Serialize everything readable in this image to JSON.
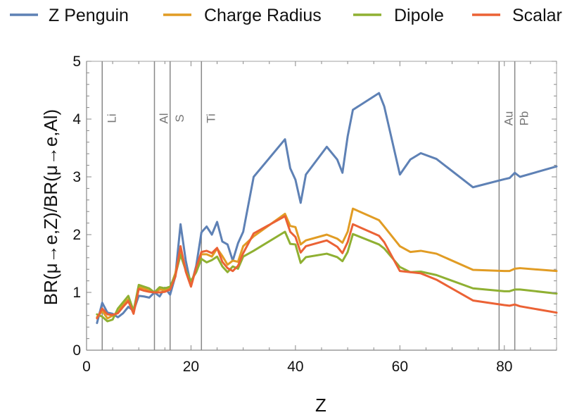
{
  "chart_data": {
    "type": "line",
    "xlabel": "Z",
    "ylabel": "BR(μ→e,Z)/BR(μ→e,Al)",
    "xlim": [
      0,
      90
    ],
    "ylim": [
      0,
      5
    ],
    "xticks": [
      0,
      20,
      40,
      60,
      80
    ],
    "yticks": [
      0,
      1,
      2,
      3,
      4,
      5
    ],
    "grid": false,
    "legend_position": "top",
    "reference_lines": [
      {
        "label": "Li",
        "x": 3
      },
      {
        "label": "Al",
        "x": 13
      },
      {
        "label": "S",
        "x": 16
      },
      {
        "label": "Ti",
        "x": 22
      },
      {
        "label": "Au",
        "x": 79
      },
      {
        "label": "Pb",
        "x": 82
      }
    ],
    "series": [
      {
        "name": "Z Penguin",
        "color": "#5e81b5",
        "points": [
          [
            2,
            0.47
          ],
          [
            3,
            0.82
          ],
          [
            4,
            0.65
          ],
          [
            5,
            0.63
          ],
          [
            6,
            0.57
          ],
          [
            7,
            0.64
          ],
          [
            8,
            0.75
          ],
          [
            9,
            0.68
          ],
          [
            10,
            0.94
          ],
          [
            11,
            0.93
          ],
          [
            12,
            0.91
          ],
          [
            13,
            1.0
          ],
          [
            14,
            0.93
          ],
          [
            15,
            1.08
          ],
          [
            16,
            0.96
          ],
          [
            17,
            1.28
          ],
          [
            18,
            2.18
          ],
          [
            19,
            1.55
          ],
          [
            20,
            1.12
          ],
          [
            21,
            1.46
          ],
          [
            22,
            2.04
          ],
          [
            23,
            2.14
          ],
          [
            24,
            2.0
          ],
          [
            25,
            2.22
          ],
          [
            26,
            1.88
          ],
          [
            27,
            1.83
          ],
          [
            28,
            1.55
          ],
          [
            29,
            1.85
          ],
          [
            30,
            2.05
          ],
          [
            32,
            3.0
          ],
          [
            38,
            3.65
          ],
          [
            39,
            3.15
          ],
          [
            40,
            2.95
          ],
          [
            41,
            2.55
          ],
          [
            42,
            3.04
          ],
          [
            46,
            3.52
          ],
          [
            48,
            3.3
          ],
          [
            49,
            3.07
          ],
          [
            50,
            3.7
          ],
          [
            51,
            4.16
          ],
          [
            56,
            4.45
          ],
          [
            57,
            4.22
          ],
          [
            60,
            3.04
          ],
          [
            62,
            3.3
          ],
          [
            64,
            3.41
          ],
          [
            67,
            3.31
          ],
          [
            74,
            2.82
          ],
          [
            80,
            2.96
          ],
          [
            81,
            2.98
          ],
          [
            82,
            3.07
          ],
          [
            83,
            3.0
          ],
          [
            90,
            3.18
          ]
        ]
      },
      {
        "name": "Charge Radius",
        "color": "#e19c24",
        "points": [
          [
            2,
            0.57
          ],
          [
            3,
            0.68
          ],
          [
            4,
            0.55
          ],
          [
            5,
            0.6
          ],
          [
            6,
            0.65
          ],
          [
            7,
            0.79
          ],
          [
            8,
            0.88
          ],
          [
            9,
            0.65
          ],
          [
            10,
            1.09
          ],
          [
            11,
            1.07
          ],
          [
            12,
            1.03
          ],
          [
            13,
            1.0
          ],
          [
            14,
            1.05
          ],
          [
            15,
            1.04
          ],
          [
            16,
            1.08
          ],
          [
            17,
            1.33
          ],
          [
            18,
            1.75
          ],
          [
            19,
            1.38
          ],
          [
            20,
            1.15
          ],
          [
            21,
            1.42
          ],
          [
            22,
            1.66
          ],
          [
            23,
            1.66
          ],
          [
            24,
            1.62
          ],
          [
            25,
            1.76
          ],
          [
            26,
            1.63
          ],
          [
            27,
            1.48
          ],
          [
            28,
            1.55
          ],
          [
            29,
            1.53
          ],
          [
            30,
            1.8
          ],
          [
            32,
            1.97
          ],
          [
            38,
            2.36
          ],
          [
            39,
            2.15
          ],
          [
            40,
            2.13
          ],
          [
            41,
            1.83
          ],
          [
            42,
            1.9
          ],
          [
            46,
            2.0
          ],
          [
            48,
            1.93
          ],
          [
            49,
            1.86
          ],
          [
            50,
            2.05
          ],
          [
            51,
            2.45
          ],
          [
            56,
            2.25
          ],
          [
            57,
            2.14
          ],
          [
            60,
            1.8
          ],
          [
            62,
            1.7
          ],
          [
            64,
            1.72
          ],
          [
            67,
            1.67
          ],
          [
            74,
            1.39
          ],
          [
            80,
            1.37
          ],
          [
            81,
            1.37
          ],
          [
            82,
            1.41
          ],
          [
            83,
            1.42
          ],
          [
            90,
            1.37
          ]
        ]
      },
      {
        "name": "Dipole",
        "color": "#8fb032",
        "points": [
          [
            2,
            0.62
          ],
          [
            3,
            0.58
          ],
          [
            4,
            0.5
          ],
          [
            5,
            0.53
          ],
          [
            6,
            0.72
          ],
          [
            7,
            0.83
          ],
          [
            8,
            0.94
          ],
          [
            9,
            0.68
          ],
          [
            10,
            1.13
          ],
          [
            11,
            1.1
          ],
          [
            12,
            1.07
          ],
          [
            13,
            1.0
          ],
          [
            14,
            1.09
          ],
          [
            15,
            1.07
          ],
          [
            16,
            1.1
          ],
          [
            17,
            1.3
          ],
          [
            18,
            1.65
          ],
          [
            19,
            1.38
          ],
          [
            20,
            1.2
          ],
          [
            21,
            1.35
          ],
          [
            22,
            1.58
          ],
          [
            23,
            1.52
          ],
          [
            24,
            1.56
          ],
          [
            25,
            1.62
          ],
          [
            26,
            1.45
          ],
          [
            27,
            1.35
          ],
          [
            28,
            1.45
          ],
          [
            29,
            1.41
          ],
          [
            30,
            1.62
          ],
          [
            32,
            1.72
          ],
          [
            38,
            2.05
          ],
          [
            39,
            1.84
          ],
          [
            40,
            1.83
          ],
          [
            41,
            1.51
          ],
          [
            42,
            1.61
          ],
          [
            46,
            1.67
          ],
          [
            48,
            1.61
          ],
          [
            49,
            1.54
          ],
          [
            50,
            1.7
          ],
          [
            51,
            2.01
          ],
          [
            56,
            1.83
          ],
          [
            57,
            1.76
          ],
          [
            60,
            1.44
          ],
          [
            62,
            1.35
          ],
          [
            64,
            1.36
          ],
          [
            67,
            1.3
          ],
          [
            74,
            1.07
          ],
          [
            80,
            1.02
          ],
          [
            81,
            1.02
          ],
          [
            82,
            1.05
          ],
          [
            83,
            1.05
          ],
          [
            90,
            0.98
          ]
        ]
      },
      {
        "name": "Scalar",
        "color": "#eb6235",
        "points": [
          [
            2,
            0.55
          ],
          [
            3,
            0.72
          ],
          [
            4,
            0.62
          ],
          [
            5,
            0.61
          ],
          [
            6,
            0.64
          ],
          [
            7,
            0.75
          ],
          [
            8,
            0.85
          ],
          [
            9,
            0.63
          ],
          [
            10,
            1.06
          ],
          [
            11,
            1.03
          ],
          [
            12,
            1.01
          ],
          [
            13,
            1.0
          ],
          [
            14,
            1.0
          ],
          [
            15,
            1.01
          ],
          [
            16,
            1.05
          ],
          [
            17,
            1.27
          ],
          [
            18,
            1.8
          ],
          [
            19,
            1.36
          ],
          [
            20,
            1.1
          ],
          [
            21,
            1.43
          ],
          [
            22,
            1.7
          ],
          [
            23,
            1.72
          ],
          [
            24,
            1.68
          ],
          [
            25,
            1.77
          ],
          [
            26,
            1.53
          ],
          [
            27,
            1.42
          ],
          [
            28,
            1.37
          ],
          [
            29,
            1.46
          ],
          [
            30,
            1.68
          ],
          [
            32,
            2.02
          ],
          [
            38,
            2.32
          ],
          [
            39,
            2.05
          ],
          [
            40,
            1.96
          ],
          [
            41,
            1.69
          ],
          [
            42,
            1.8
          ],
          [
            46,
            1.9
          ],
          [
            48,
            1.79
          ],
          [
            49,
            1.68
          ],
          [
            50,
            1.87
          ],
          [
            51,
            2.18
          ],
          [
            56,
            1.98
          ],
          [
            57,
            1.87
          ],
          [
            60,
            1.37
          ],
          [
            62,
            1.35
          ],
          [
            64,
            1.33
          ],
          [
            67,
            1.22
          ],
          [
            74,
            0.86
          ],
          [
            80,
            0.78
          ],
          [
            81,
            0.77
          ],
          [
            82,
            0.79
          ],
          [
            83,
            0.76
          ],
          [
            90,
            0.65
          ]
        ]
      }
    ]
  }
}
